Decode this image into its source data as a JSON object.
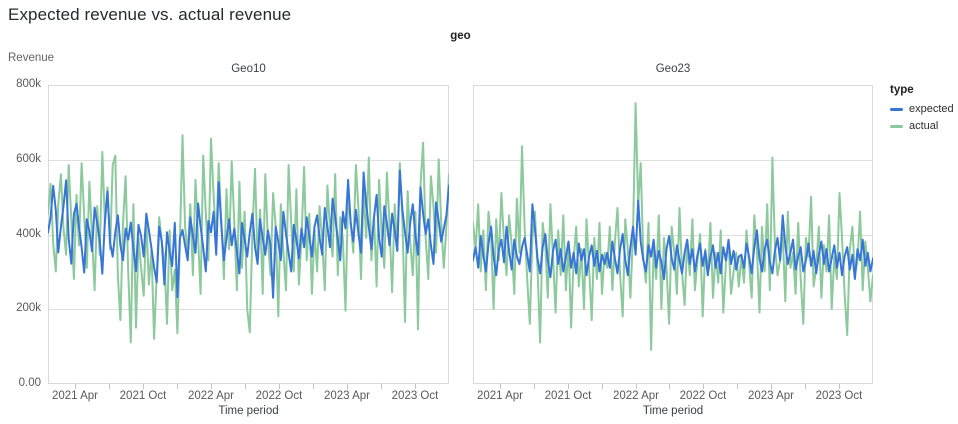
{
  "page": {
    "title": "Expected revenue vs. actual revenue"
  },
  "colors": {
    "expected": "#3875D9",
    "actual": "#8CC99C",
    "grid": "#DEDEDE",
    "panel_border": "#D9D9D9",
    "tick_mark": "#C4C4C4"
  },
  "chart_data": {
    "type": "line",
    "title": "Expected revenue vs. actual revenue",
    "facet_field": "geo",
    "legend": {
      "title": "type",
      "items": [
        {
          "label": "expected",
          "color": "#3875D9"
        },
        {
          "label": "actual",
          "color": "#8CC99C"
        }
      ]
    },
    "x": {
      "label": "Time period",
      "interval": "weekly, Jan 2021 - Dec 2023",
      "domain_months": [
        0.62,
        36
      ],
      "ticks": [
        {
          "month": 3,
          "label": "2021 Apr"
        },
        {
          "month": 6,
          "label": ""
        },
        {
          "month": 9,
          "label": "2021 Oct"
        },
        {
          "month": 12,
          "label": ""
        },
        {
          "month": 15,
          "label": "2022 Apr"
        },
        {
          "month": 18,
          "label": ""
        },
        {
          "month": 21,
          "label": "2022 Oct"
        },
        {
          "month": 24,
          "label": ""
        },
        {
          "month": 27,
          "label": "2023 Apr"
        },
        {
          "month": 30,
          "label": ""
        },
        {
          "month": 33,
          "label": "2023 Oct"
        },
        {
          "month": 36,
          "label": ""
        }
      ]
    },
    "y": {
      "label": "Revenue",
      "unit": "thousands",
      "lim_k": [
        0,
        800
      ],
      "grid_values_k": [
        200,
        400,
        600
      ],
      "ticks": [
        {
          "value_k": 0,
          "label": "0.00"
        },
        {
          "value_k": 200,
          "label": "200k"
        },
        {
          "value_k": 400,
          "label": "400k"
        },
        {
          "value_k": 600,
          "label": "600k"
        },
        {
          "value_k": 800,
          "label": "800k"
        }
      ]
    },
    "facets": [
      {
        "name": "Geo10",
        "series": [
          {
            "name": "expected",
            "color": "#3875D9",
            "values_k": [
              405,
              447,
              530,
              465,
              352,
              421,
              476,
              545,
              390,
              322,
              455,
              482,
              420,
              366,
              298,
              441,
              409,
              355,
              472,
              430,
              386,
              295,
              436,
              515,
              378,
              341,
              406,
              451,
              371,
              331,
              416,
              386,
              432,
              361,
              302,
              426,
              396,
              341,
              456,
              411,
              362,
              312,
              272,
              421,
              381,
              266,
              406,
              356,
              316,
              431,
              232,
              391,
              412,
              371,
              331,
              446,
              396,
              351,
              483,
              421,
              366,
              301,
              436,
              406,
              461,
              346,
              540,
              426,
              331,
              391,
              441,
              371,
              416,
              356,
              296,
              431,
              386,
              341,
              406,
              456,
              366,
              321,
              441,
              391,
              346,
              411,
              371,
              231,
              421,
              381,
              331,
              461,
              401,
              351,
              301,
              426,
              386,
              336,
              416,
              366,
              446,
              396,
              341,
              421,
              451,
              391,
              346,
              471,
              421,
              366,
              496,
              446,
              386,
              331,
              461,
              416,
              546,
              431,
              381,
              466,
              401,
              351,
              566,
              481,
              421,
              361,
              446,
              506,
              391,
              341,
              476,
              431,
              371,
              456,
              411,
              356,
              571,
              466,
              406,
              351,
              431,
              481,
              396,
              346,
              526,
              456,
              401,
              441,
              371,
              321,
              486,
              436,
              381,
              416,
              451,
              531
            ]
          },
          {
            "name": "actual",
            "color": "#8CC99C",
            "values_k": [
              455,
              536,
              375,
              301,
              481,
              561,
              416,
              346,
              586,
              441,
              281,
              506,
              371,
              591,
              451,
              311,
              541,
              396,
              251,
              476,
              346,
              621,
              431,
              526,
              361,
              586,
              611,
              286,
              171,
              431,
              556,
              301,
              111,
              481,
              151,
              391,
              311,
              236,
              441,
              266,
              361,
              121,
              291,
              446,
              381,
              331,
              161,
              411,
              251,
              306,
              136,
              381,
              666,
              421,
              351,
              481,
              291,
              546,
              391,
              241,
              611,
              456,
              331,
              656,
              506,
              381,
              591,
              436,
              281,
              521,
              361,
              596,
              431,
              251,
              541,
              311,
              461,
              201,
              138,
              406,
              576,
              331,
              466,
              241,
              561,
              386,
              291,
              511,
              421,
              181,
              481,
              351,
              251,
              586,
              431,
              301,
              521,
              266,
              391,
              581,
              331,
              456,
              241,
              411,
              301,
              476,
              381,
              251,
              531,
              416,
              341,
              561,
              291,
              446,
              386,
              196,
              506,
              431,
              351,
              586,
              466,
              281,
              521,
              391,
              606,
              331,
              451,
              261,
              546,
              401,
              311,
              566,
              426,
              246,
              481,
              356,
              591,
              436,
              166,
              516,
              381,
              291,
              461,
              146,
              531,
              646,
              391,
              281,
              556,
              476,
              351,
              601,
              431,
              311,
              421,
              561
            ]
          }
        ]
      },
      {
        "name": "Geo23",
        "series": [
          {
            "name": "expected",
            "color": "#3875D9",
            "values_k": [
              331,
              366,
              311,
              396,
              346,
              301,
              376,
              421,
              341,
              291,
              361,
              386,
              326,
              421,
              356,
              306,
              386,
              341,
              321,
              366,
              391,
              346,
              301,
              481,
              416,
              336,
              296,
              366,
              401,
              331,
              286,
              356,
              386,
              321,
              361,
              301,
              341,
              381,
              311,
              351,
              296,
              376,
              331,
              361,
              291,
              341,
              371,
              316,
              356,
              301,
              346,
              321,
              351,
              311,
              381,
              336,
              296,
              361,
              401,
              331,
              291,
              366,
              421,
              346,
              491,
              381,
              331,
              301,
              371,
              341,
              386,
              311,
              356,
              326,
              281,
              361,
              396,
              336,
              306,
              371,
              331,
              296,
              351,
              386,
              321,
              361,
              301,
              346,
              376,
              316,
              356,
              291,
              341,
              371,
              311,
              351,
              296,
              366,
              331,
              386,
              321,
              356,
              306,
              341,
              346,
              311,
              376,
              341,
              296,
              366,
              411,
              336,
              301,
              361,
              386,
              326,
              296,
              356,
              391,
              331,
              451,
              371,
              321,
              351,
              386,
              306,
              341,
              366,
              301,
              331,
              376,
              316,
              356,
              296,
              346,
              381,
              321,
              361,
              301,
              336,
              371,
              311,
              351,
              291,
              341,
              366,
              306,
              346,
              281,
              361,
              331,
              386,
              316,
              351,
              301,
              336
            ]
          },
          {
            "name": "actual",
            "color": "#8CC99C",
            "values_k": [
              431,
              361,
              481,
              301,
              411,
              251,
              461,
              391,
              201,
              441,
              331,
              511,
              381,
              291,
              451,
              371,
              241,
              496,
              351,
              636,
              421,
              281,
              161,
              391,
              461,
              311,
              111,
              431,
              371,
              231,
              481,
              341,
              191,
              411,
              291,
              451,
              251,
              381,
              151,
              331,
              421,
              261,
              361,
              201,
              441,
              311,
              171,
              391,
              281,
              431,
              241,
              351,
              311,
              421,
              251,
              381,
              471,
              291,
              181,
              441,
              361,
              231,
              401,
              751,
              481,
              591,
              341,
              271,
              431,
              91,
              361,
              281,
              451,
              201,
              391,
              311,
              161,
              421,
              351,
              241,
              471,
              301,
              211,
              381,
              291,
              441,
              251,
              331,
              401,
              181,
              361,
              291,
              431,
              231,
              351,
              271,
              411,
              191,
              321,
              381,
              241,
              301,
              351,
              261,
              341,
              271,
              411,
              321,
              231,
              451,
              361,
              191,
              421,
              301,
              481,
              251,
              606,
              371,
              291,
              331,
              401,
              221,
              461,
              311,
              351,
              241,
              431,
              281,
              161,
              391,
              341,
              501,
              261,
              311,
              421,
              231,
              371,
              301,
              451,
              201,
              341,
              281,
              511,
              391,
              241,
              131,
              361,
              421,
              291,
              331,
              461,
              251,
              381,
              311,
              221,
              291
            ]
          }
        ]
      }
    ]
  }
}
